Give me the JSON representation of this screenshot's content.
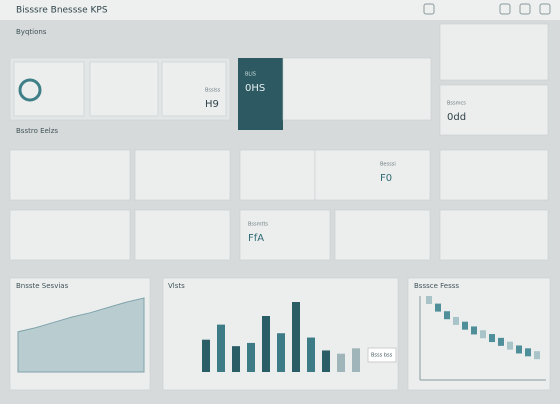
{
  "header": {
    "title": "Bisssre Bnessse KPS"
  },
  "sections": [
    "Byqtions",
    "Bsstro Eelzs"
  ],
  "kpis": [
    {
      "label": "BLIS",
      "value": "0HS"
    },
    {
      "label": "Bsslss",
      "value": "H9"
    },
    {
      "label": "Bssmcs",
      "value": "0dd"
    },
    {
      "label": "Bssmtts",
      "value": "FfA"
    },
    {
      "label": "Besssi",
      "value": "F0"
    }
  ],
  "area_chart": {
    "title": "Bnsste Sesvias",
    "values": [
      38,
      42,
      47,
      52,
      56,
      61,
      66,
      70
    ]
  },
  "bar_chart": {
    "title": "Vlsts",
    "tooltip": "Bsss bss",
    "values": [
      30,
      44,
      24,
      27,
      52,
      36,
      65,
      32,
      20,
      17,
      22
    ]
  },
  "trend_chart": {
    "title": "Bsssce Fesss",
    "values": [
      82,
      74,
      66,
      60,
      55,
      50,
      46,
      42,
      38,
      34,
      30,
      27,
      24
    ]
  }
}
